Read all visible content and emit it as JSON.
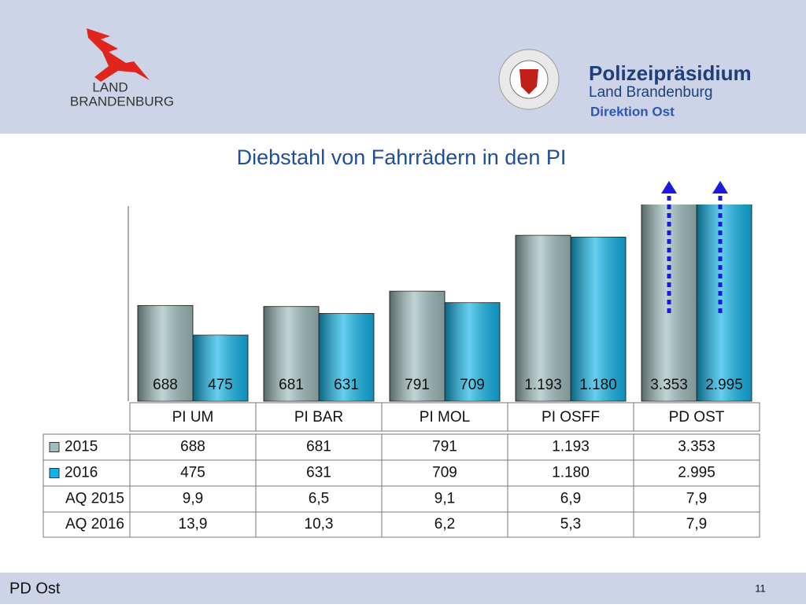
{
  "header": {
    "logo_left": [
      "LAND",
      "BRANDENBURG"
    ],
    "org": "Polizeipräsidium",
    "org_sub": "Land Brandenburg",
    "org_unit": "Direktion Ost"
  },
  "chart_data": {
    "type": "bar",
    "title": "Diebstahl von Fahrrädern in den PI",
    "categories": [
      "PI UM",
      "PI BAR",
      "PI MOL",
      "PI OSFF",
      "PD OST"
    ],
    "series": [
      {
        "name": "2015",
        "color": "#9fbdbd",
        "values": [
          688,
          681,
          791,
          1193,
          3353
        ],
        "value_labels": [
          "688",
          "681",
          "791",
          "1.193",
          "3.353"
        ]
      },
      {
        "name": "2016",
        "color": "#12b4e8",
        "values": [
          475,
          631,
          709,
          1180,
          2995
        ],
        "value_labels": [
          "475",
          "631",
          "709",
          "1.180",
          "2.995"
        ]
      }
    ],
    "ylim": [
      0,
      1415
    ],
    "table": {
      "rows": [
        {
          "name": "AQ 2015",
          "values": [
            9.9,
            6.5,
            9.1,
            6.9,
            7.9
          ],
          "value_labels": [
            "9,9",
            "6,5",
            "9,1",
            "6,9",
            "7,9"
          ]
        },
        {
          "name": "AQ 2016",
          "values": [
            13.9,
            10.3,
            6.2,
            5.3,
            7.9
          ],
          "value_labels": [
            "13,9",
            "10,3",
            "6,2",
            "5,3",
            "7,9"
          ]
        }
      ]
    }
  },
  "footer": {
    "left": "PD Ost",
    "page": "11"
  }
}
